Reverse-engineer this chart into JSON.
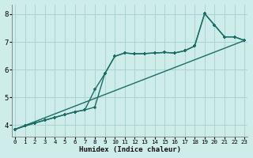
{
  "xlabel": "Humidex (Indice chaleur)",
  "xlim": [
    -0.3,
    23.3
  ],
  "ylim": [
    3.6,
    8.35
  ],
  "xticks": [
    0,
    1,
    2,
    3,
    4,
    5,
    6,
    7,
    8,
    9,
    10,
    11,
    12,
    13,
    14,
    15,
    16,
    17,
    18,
    19,
    20,
    21,
    22,
    23
  ],
  "yticks": [
    4,
    5,
    6,
    7,
    8
  ],
  "background_color": "#ceecea",
  "grid_color": "#aad4d0",
  "line_color": "#1a6e65",
  "line1_x": [
    0,
    23
  ],
  "line1_y": [
    3.85,
    7.05
  ],
  "line2_x": [
    0,
    1,
    2,
    3,
    4,
    5,
    6,
    7,
    8,
    9,
    10,
    11,
    12,
    13,
    14,
    15,
    16,
    17,
    18,
    19,
    20,
    21,
    22,
    23
  ],
  "line2_y": [
    3.85,
    3.97,
    4.08,
    4.18,
    4.28,
    4.38,
    4.48,
    4.55,
    4.65,
    5.85,
    6.48,
    6.6,
    6.57,
    6.58,
    6.6,
    6.62,
    6.6,
    6.68,
    6.85,
    8.02,
    7.6,
    7.18,
    7.18,
    7.05
  ],
  "line3_x": [
    0,
    1,
    2,
    3,
    4,
    5,
    6,
    7,
    8,
    9,
    10,
    11,
    12,
    13,
    14,
    15,
    16,
    17,
    18,
    19,
    20,
    21,
    22,
    23
  ],
  "line3_y": [
    3.85,
    3.97,
    4.08,
    4.18,
    4.28,
    4.38,
    4.48,
    4.55,
    5.28,
    5.85,
    6.48,
    6.6,
    6.57,
    6.58,
    6.6,
    6.62,
    6.6,
    6.68,
    6.85,
    8.02,
    7.6,
    7.18,
    7.18,
    7.05
  ]
}
